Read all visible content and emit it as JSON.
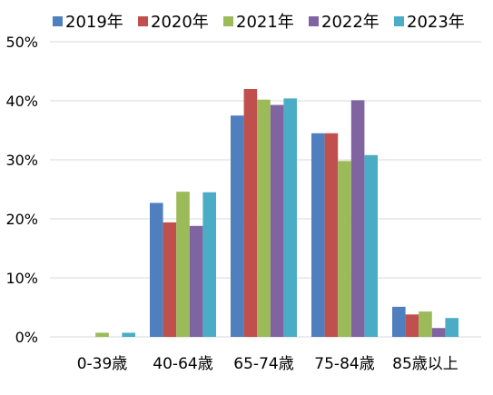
{
  "chart_data": {
    "type": "bar",
    "title": "",
    "xlabel": "",
    "ylabel": "",
    "categories": [
      "0-39歳",
      "40-64歳",
      "65-74歳",
      "75-84歳",
      "85歳以上"
    ],
    "series": [
      {
        "name": "2019年",
        "color": "#4f7fbf",
        "values": [
          0.0,
          22.7,
          37.5,
          34.5,
          5.1
        ]
      },
      {
        "name": "2020年",
        "color": "#c0504d",
        "values": [
          0.0,
          19.4,
          42.0,
          34.5,
          3.8
        ]
      },
      {
        "name": "2021年",
        "color": "#9bbb59",
        "values": [
          0.7,
          24.6,
          40.2,
          29.8,
          4.3
        ]
      },
      {
        "name": "2022年",
        "color": "#8064a2",
        "values": [
          0.0,
          18.8,
          39.3,
          40.1,
          1.5
        ]
      },
      {
        "name": "2023年",
        "color": "#4bacc6",
        "values": [
          0.7,
          24.5,
          40.4,
          30.8,
          3.2
        ]
      }
    ],
    "ylim": [
      0,
      50
    ],
    "yticks": [
      "0%",
      "10%",
      "20%",
      "30%",
      "40%",
      "50%"
    ],
    "ytick_values": [
      0,
      10,
      20,
      30,
      40,
      50
    ],
    "grid": true,
    "legend_position": "top"
  }
}
